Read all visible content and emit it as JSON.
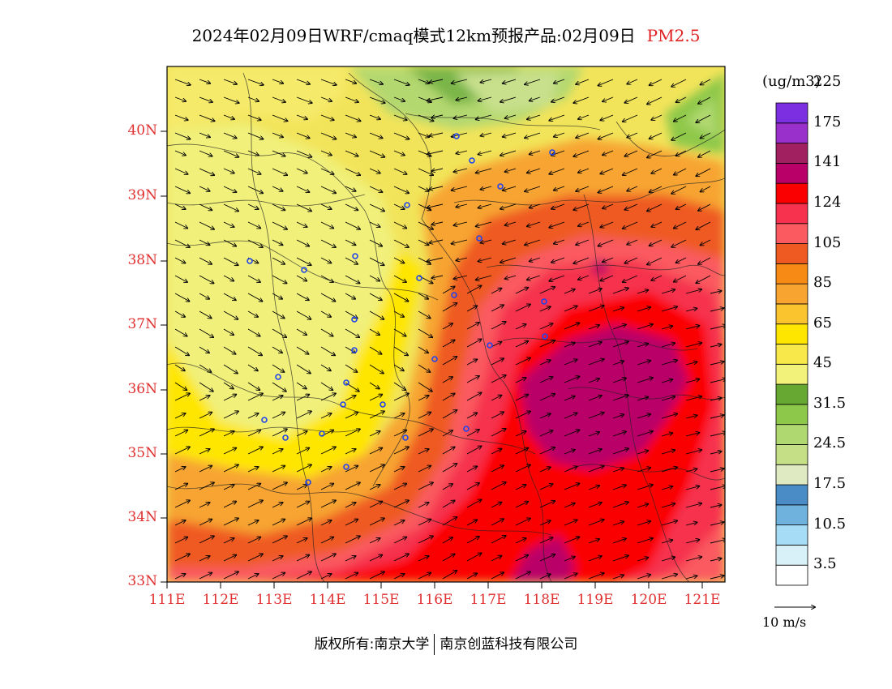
{
  "title": "2024年02月09日WRF/cmaq模式12km预报产品:02月09日",
  "pollutant": "PM2.5",
  "unit": "(ug/m3)",
  "lat_ticks": [
    "40N",
    "39N",
    "38N",
    "37N",
    "36N",
    "35N",
    "34N",
    "33N"
  ],
  "lon_ticks": [
    "111E",
    "112E",
    "113E",
    "114E",
    "115E",
    "116E",
    "117E",
    "118E",
    "119E",
    "120E",
    "121E"
  ],
  "colorbar": {
    "colors": [
      "#ffffff",
      "#d8f0f8",
      "#a6dcf5",
      "#6fb2de",
      "#4a8cc6",
      "#dfeac2",
      "#c4df86",
      "#b0d870",
      "#8ec84a",
      "#66a832",
      "#f2f27a",
      "#f8e84a",
      "#ffe600",
      "#f9c42e",
      "#f7a431",
      "#f78a14",
      "#ef5a22",
      "#fa5a60",
      "#f6324e",
      "#fb0000",
      "#b90068",
      "#a02060",
      "#9930cc",
      "#7b2fe0"
    ],
    "labels": [
      "3.5",
      "10.5",
      "17.5",
      "24.5",
      "31.5",
      "45",
      "65",
      "85",
      "105",
      "124",
      "141",
      "175",
      "225"
    ]
  },
  "vector_ref": "10 m/s",
  "copyright": {
    "left": "版权所有:南京大学",
    "right": "南京创蓝科技有限公司"
  }
}
